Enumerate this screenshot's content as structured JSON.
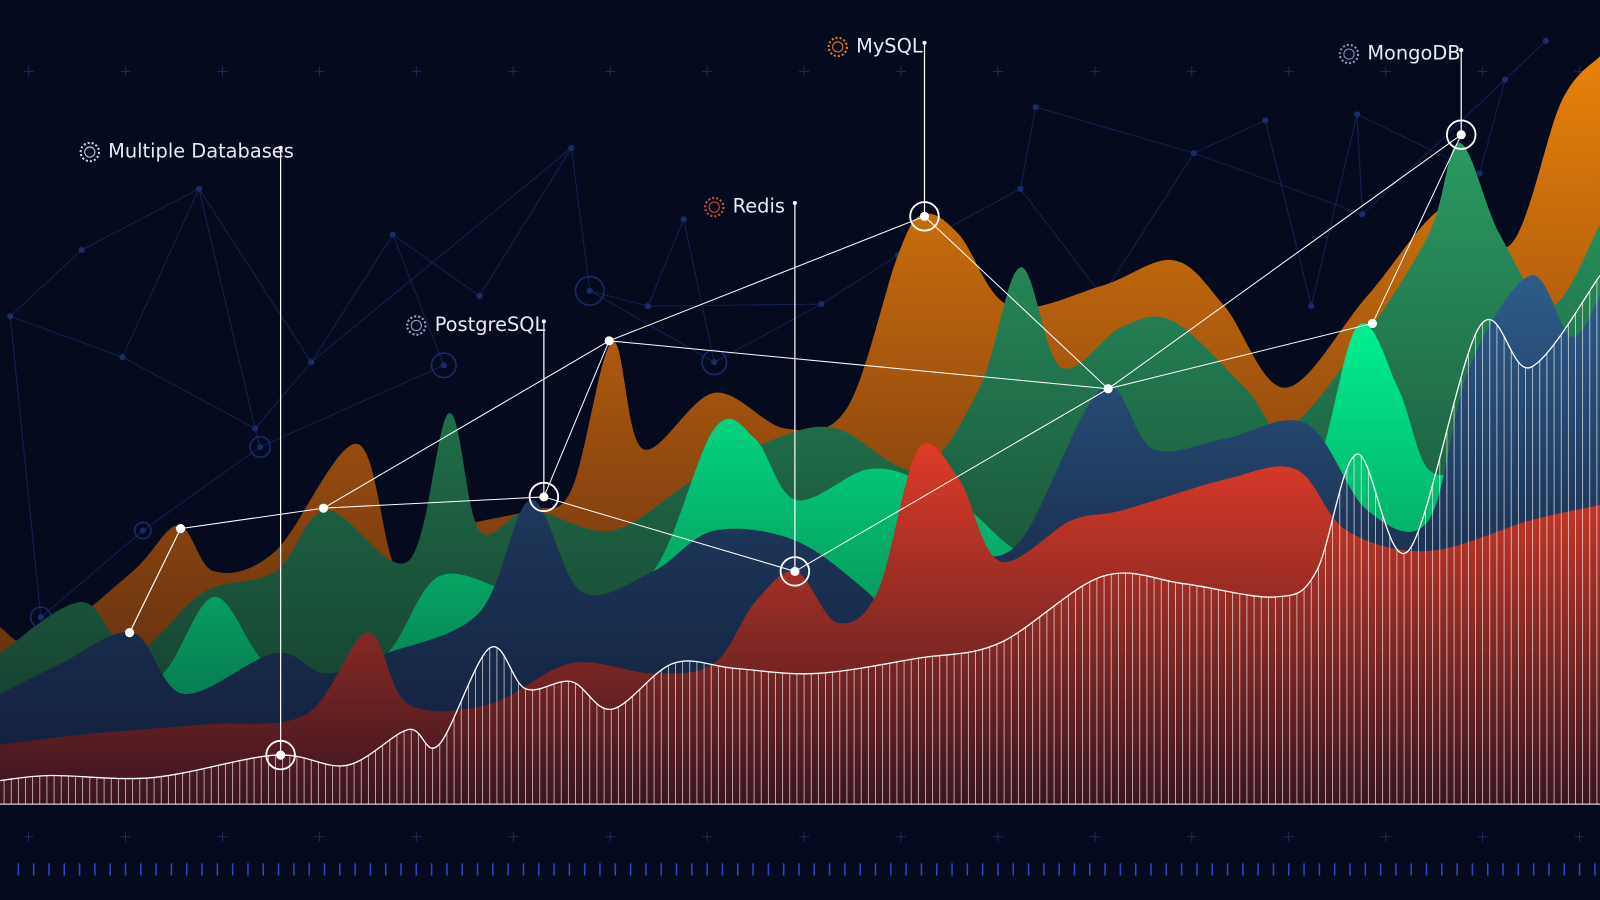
{
  "callouts": [
    {
      "label": "Multiple Databases"
    },
    {
      "label": "PostgreSQL"
    },
    {
      "label": "Redis"
    },
    {
      "label": "MySQL"
    },
    {
      "label": "MongoDB"
    }
  ]
}
